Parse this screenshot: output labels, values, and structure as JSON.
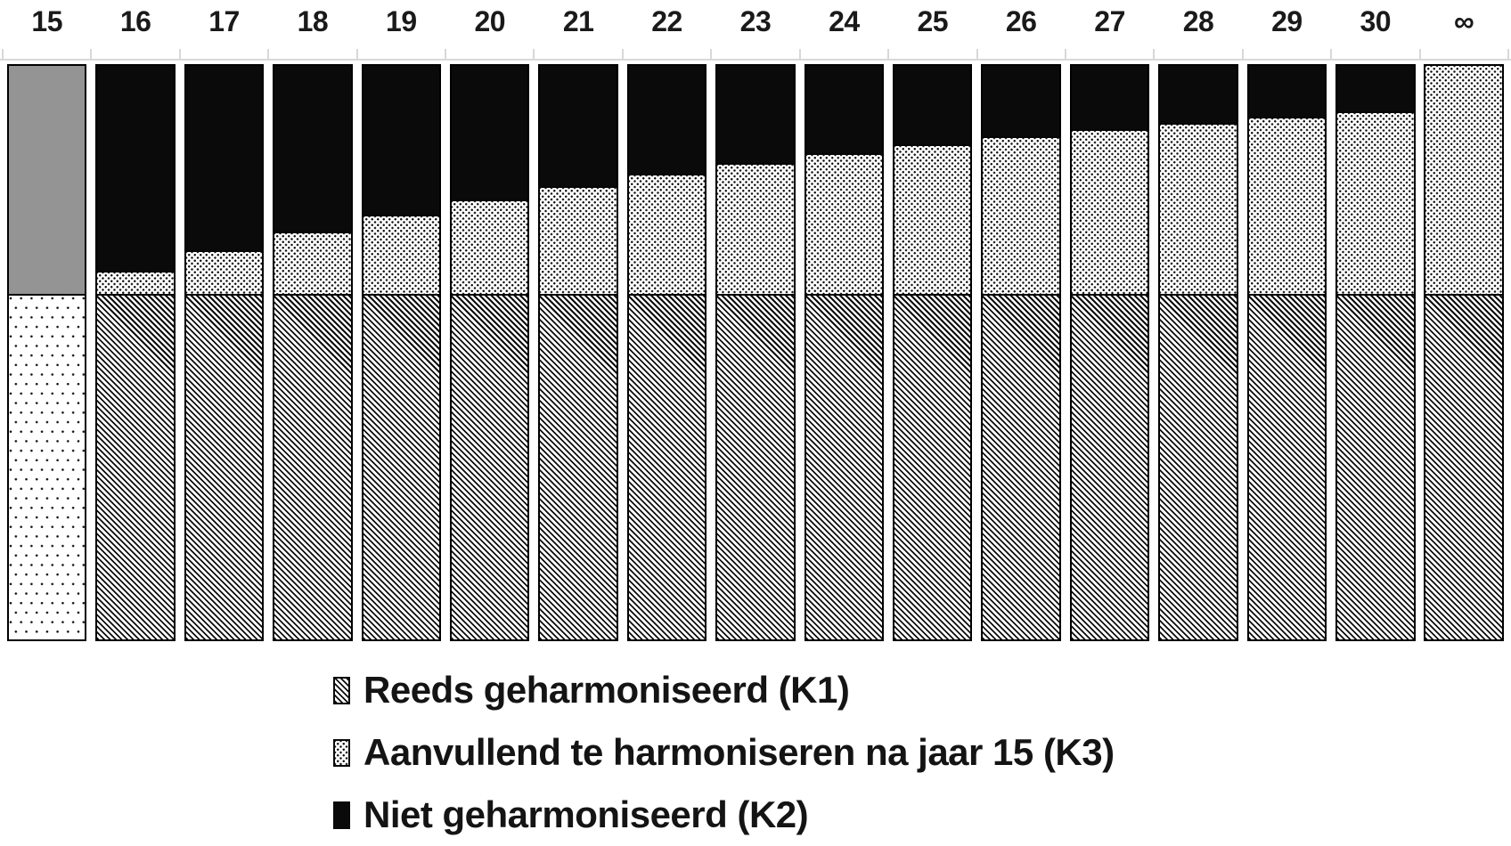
{
  "figure": {
    "background": "#ffffff"
  },
  "colors": {
    "pattern_ink": "#0c0c0c",
    "solid_black": "#0a0a0a",
    "solid_gray": "#949494",
    "label_text": "#1a1a1a",
    "axis_and_ticks": "#d8d8d8",
    "bar_border": "#000000"
  },
  "chart_data": {
    "type": "bar",
    "variant": "100-percent-stacked-columns",
    "title": "",
    "xlabel": "",
    "ylabel": "",
    "ylim": [
      0,
      100
    ],
    "grid": false,
    "legend_position": "bottom-left",
    "categories": [
      "15",
      "16",
      "17",
      "18",
      "19",
      "20",
      "21",
      "22",
      "23",
      "24",
      "25",
      "26",
      "27",
      "28",
      "29",
      "30",
      "∞"
    ],
    "series": [
      {
        "name": "Reeds geharmoniseerd (K1)",
        "pattern": "hatch",
        "values": [
          null,
          60,
          60,
          60,
          60,
          60,
          60,
          60,
          60,
          60,
          60,
          60,
          60,
          60,
          60,
          60,
          60
        ]
      },
      {
        "name": "Aanvullend te harmoniseren na jaar 15 (K3)",
        "pattern": "dots",
        "values": [
          null,
          4,
          7.6,
          10.8,
          13.8,
          16.4,
          18.7,
          20.9,
          22.8,
          24.5,
          26.1,
          27.5,
          28.7,
          29.8,
          30.9,
          31.8,
          40
        ]
      },
      {
        "name": "Niet geharmoniseerd (K2)",
        "pattern": "black",
        "values": [
          null,
          36,
          32.4,
          29.2,
          26.2,
          23.6,
          21.3,
          19.1,
          17.2,
          15.5,
          13.9,
          12.5,
          11.3,
          10.2,
          9.1,
          8.2,
          0
        ]
      }
    ],
    "special_first_bar": {
      "category": "15",
      "segments": [
        {
          "pattern": "sparse",
          "value": 60
        },
        {
          "pattern": "gray",
          "value": 40
        }
      ]
    }
  },
  "legend": {
    "items": [
      {
        "label": "Reeds geharmoniseerd (K1)",
        "pattern": "hatch"
      },
      {
        "label": "Aanvullend te harmoniseren na jaar 15 (K3)",
        "pattern": "dots"
      },
      {
        "label": "Niet geharmoniseerd (K2)",
        "pattern": "black"
      }
    ]
  }
}
